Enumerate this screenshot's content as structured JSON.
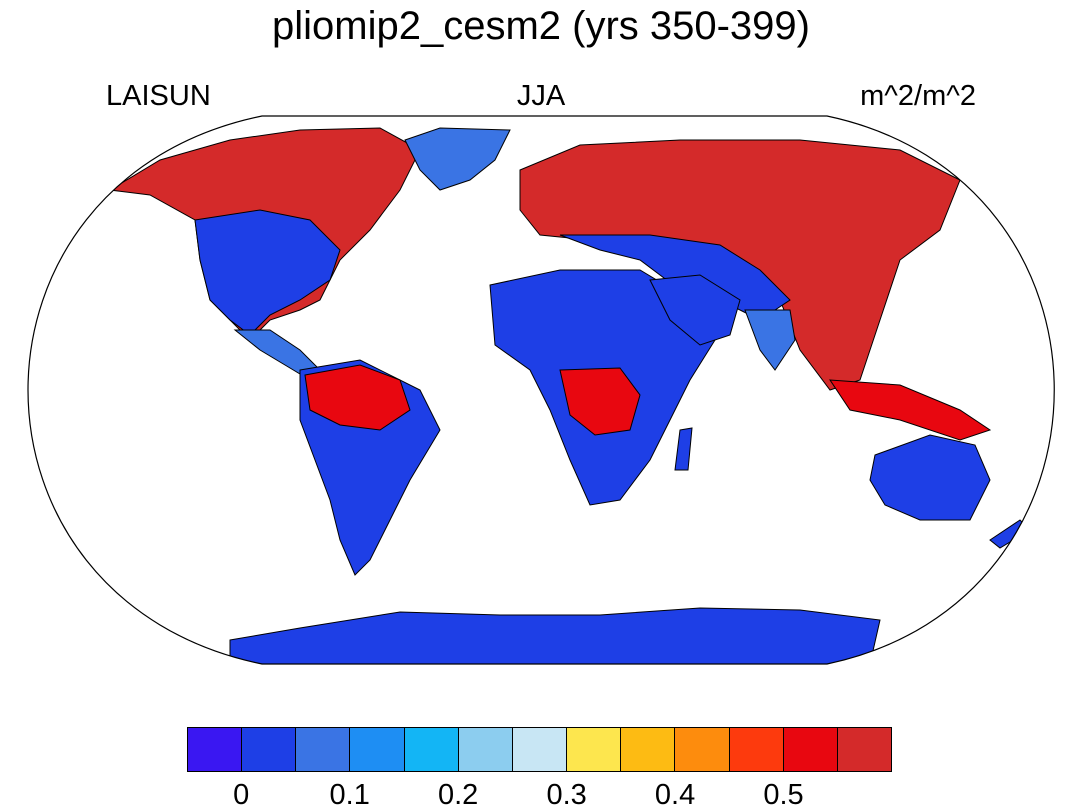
{
  "title": "pliomip2_cesm2 (yrs 350-399)",
  "left_label": "LAISUN",
  "center_label": "JJA",
  "right_label": "m^2/m^2",
  "colorbar": {
    "colors": [
      "#3a17f2",
      "#1e3fe6",
      "#3a74e4",
      "#1e8ef3",
      "#13b5f5",
      "#8ccdef",
      "#c8e6f4",
      "#fde64e",
      "#fdbb13",
      "#fd8c0d",
      "#fd3a0d",
      "#e80710",
      "#d42a2a"
    ],
    "tick_labels": [
      "0",
      "0.1",
      "0.2",
      "0.3",
      "0.4",
      "0.5"
    ]
  },
  "land_colors": {
    "low": "#1e3fe6",
    "mid_low": "#3a74e4",
    "light": "#13b5f5",
    "yellow": "#fde64e",
    "orange": "#fd8c0d",
    "red": "#e80710",
    "dark_red": "#d42a2a"
  }
}
